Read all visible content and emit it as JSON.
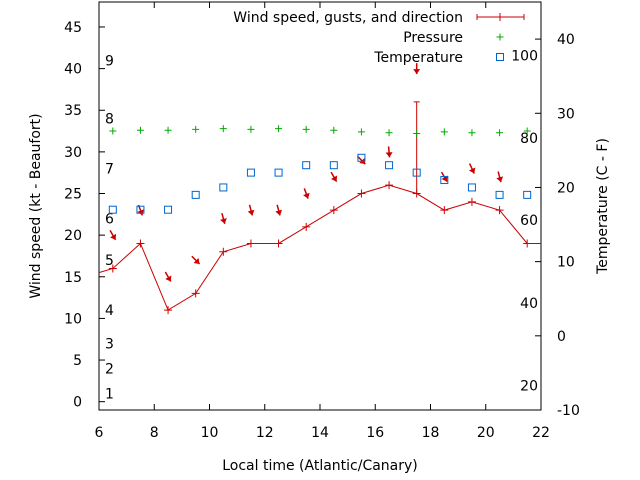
{
  "chart_data": {
    "type": "line",
    "xlabel": "Local time (Atlantic/Canary)",
    "ylabel": "Wind speed (kt - Beaufort)",
    "y2label": "Temperature (C - F)",
    "xlim": [
      6,
      22
    ],
    "ylim": [
      -1,
      48
    ],
    "y2lim": [
      -10,
      45
    ],
    "x_ticks": [
      "6",
      "8",
      "10",
      "12",
      "14",
      "16",
      "18",
      "20",
      "22"
    ],
    "y_ticks": [
      "0",
      "5",
      "10",
      "15",
      "20",
      "25",
      "30",
      "35",
      "40",
      "45"
    ],
    "y2_ticks": [
      "-10",
      "0",
      "10",
      "20",
      "30",
      "40"
    ],
    "beaufort_labels": [
      {
        "label": "1",
        "kt": 1
      },
      {
        "label": "2",
        "kt": 4
      },
      {
        "label": "3",
        "kt": 7
      },
      {
        "label": "4",
        "kt": 11
      },
      {
        "label": "5",
        "kt": 17
      },
      {
        "label": "6",
        "kt": 22
      },
      {
        "label": "7",
        "kt": 28
      },
      {
        "label": "8",
        "kt": 34
      },
      {
        "label": "9",
        "kt": 41
      }
    ],
    "fahrenheit_labels": [
      {
        "label": "20",
        "celsius": -6.7
      },
      {
        "label": "40",
        "celsius": 4.4
      },
      {
        "label": "60",
        "celsius": 15.6
      },
      {
        "label": "80",
        "celsius": 26.7
      },
      {
        "label": "100",
        "celsius": 37.8
      }
    ],
    "legend": [
      "Wind speed, gusts, and direction",
      "Pressure",
      "Temperature"
    ],
    "legend_position": "top-right",
    "colors": {
      "wind": "#cc0000",
      "pressure": "#00aa00",
      "temperature": "#0066cc",
      "arrows": "#cc0000"
    },
    "series": [
      {
        "name": "Wind speed, gusts, and direction",
        "x": [
          6,
          6.5,
          7.5,
          8.5,
          9.5,
          10.5,
          11.5,
          12.5,
          13.5,
          14.5,
          15.5,
          16.5,
          17.5,
          18.5,
          19.5,
          20.5,
          21.5,
          22
        ],
        "speed_kt": [
          15.5,
          16,
          19,
          11,
          13,
          18,
          19,
          19,
          21,
          23,
          25,
          26,
          25,
          23,
          24,
          23,
          19,
          19
        ],
        "gust_kt": [
          null,
          null,
          null,
          null,
          null,
          null,
          null,
          null,
          null,
          null,
          null,
          null,
          36,
          null,
          null,
          null,
          null,
          null
        ],
        "arrow_position_kt": [
          null,
          20,
          23,
          15,
          17,
          22,
          23,
          23,
          25,
          27,
          29,
          30,
          40,
          27,
          28,
          27,
          null,
          null
        ],
        "direction_from_deg": [
          null,
          330,
          340,
          330,
          315,
          345,
          345,
          345,
          340,
          330,
          315,
          355,
          0,
          330,
          335,
          345,
          null,
          null
        ]
      },
      {
        "name": "Pressure",
        "x": [
          6.5,
          7.5,
          8.5,
          9.5,
          10.5,
          11.5,
          12.5,
          13.5,
          14.5,
          15.5,
          16.5,
          17.5,
          18.5,
          19.5,
          20.5,
          21.5
        ],
        "values": [
          32.5,
          32.6,
          32.6,
          32.7,
          32.8,
          32.7,
          32.8,
          32.7,
          32.6,
          32.4,
          32.3,
          32.2,
          32.4,
          32.3,
          32.3,
          32.5
        ]
      },
      {
        "name": "Temperature",
        "x": [
          6.5,
          7.5,
          8.5,
          9.5,
          10.5,
          11.5,
          12.5,
          13.5,
          14.5,
          15.5,
          16.5,
          17.5,
          18.5,
          19.5,
          20.5,
          21.5
        ],
        "values_c": [
          17,
          17,
          17,
          19,
          20,
          22,
          22,
          23,
          23,
          24,
          23,
          22,
          21,
          20,
          19,
          19
        ]
      }
    ]
  }
}
